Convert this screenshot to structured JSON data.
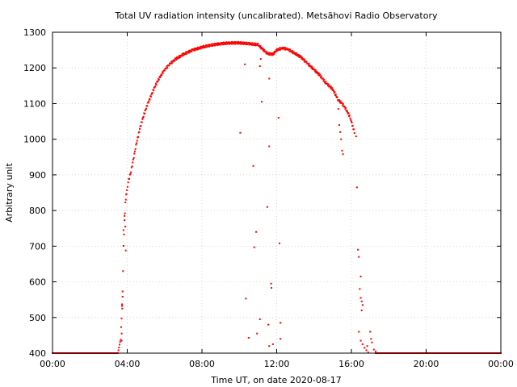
{
  "chart_data": {
    "type": "scatter",
    "title": "Total UV radiation intensity (uncalibrated). Metsähovi Radio Observatory",
    "xlabel": "Time UT, on date 2020-08-17",
    "ylabel": "Arbitrary unit",
    "x_unit": "hours UT",
    "xlim": [
      0,
      24
    ],
    "ylim": [
      400,
      1300
    ],
    "x_ticks": [
      {
        "value": 0,
        "label": "00:00"
      },
      {
        "value": 4,
        "label": "04:00"
      },
      {
        "value": 8,
        "label": "08:00"
      },
      {
        "value": 12,
        "label": "12:00"
      },
      {
        "value": 16,
        "label": "16:00"
      },
      {
        "value": 20,
        "label": "20:00"
      },
      {
        "value": 24,
        "label": "00:00"
      }
    ],
    "y_ticks": [
      400,
      500,
      600,
      700,
      800,
      900,
      1000,
      1100,
      1200,
      1300
    ],
    "grid": true,
    "marker_color": "#ff0000",
    "series": [
      {
        "main_curve": [
          [
            0.0,
            400
          ],
          [
            1.0,
            400
          ],
          [
            2.0,
            400
          ],
          [
            3.0,
            400
          ],
          [
            3.5,
            400
          ],
          [
            3.65,
            440
          ],
          [
            3.7,
            500
          ],
          [
            3.75,
            560
          ],
          [
            3.8,
            700
          ],
          [
            3.85,
            770
          ],
          [
            3.9,
            820
          ],
          [
            3.95,
            845
          ],
          [
            4.05,
            880
          ],
          [
            4.2,
            910
          ],
          [
            4.35,
            950
          ],
          [
            4.5,
            990
          ],
          [
            4.7,
            1035
          ],
          [
            4.9,
            1070
          ],
          [
            5.1,
            1100
          ],
          [
            5.3,
            1125
          ],
          [
            5.5,
            1150
          ],
          [
            5.7,
            1170
          ],
          [
            6.0,
            1195
          ],
          [
            6.3,
            1212
          ],
          [
            6.6,
            1225
          ],
          [
            7.0,
            1238
          ],
          [
            7.5,
            1250
          ],
          [
            8.0,
            1258
          ],
          [
            8.5,
            1264
          ],
          [
            9.0,
            1268
          ],
          [
            9.5,
            1270
          ],
          [
            10.0,
            1270
          ],
          [
            10.5,
            1268
          ],
          [
            11.0,
            1265
          ],
          [
            11.5,
            1240
          ],
          [
            11.8,
            1238
          ],
          [
            12.0,
            1250
          ],
          [
            12.3,
            1256
          ],
          [
            12.6,
            1252
          ],
          [
            13.0,
            1240
          ],
          [
            13.3,
            1230
          ],
          [
            13.6,
            1215
          ],
          [
            14.0,
            1195
          ],
          [
            14.3,
            1180
          ],
          [
            14.6,
            1160
          ],
          [
            15.0,
            1140
          ],
          [
            15.3,
            1110
          ],
          [
            15.5,
            1100
          ],
          [
            15.7,
            1085
          ],
          [
            15.9,
            1065
          ],
          [
            16.0,
            1050
          ],
          [
            16.1,
            1030
          ],
          [
            16.2,
            1015
          ]
        ],
        "scattered_points": [
          [
            3.8,
            745
          ],
          [
            3.85,
            785
          ],
          [
            3.9,
            755
          ],
          [
            3.95,
            845
          ],
          [
            3.92,
            688
          ],
          [
            3.75,
            573
          ],
          [
            3.72,
            537
          ],
          [
            3.73,
            525
          ],
          [
            3.7,
            455
          ],
          [
            3.7,
            435
          ],
          [
            10.05,
            1018
          ],
          [
            10.3,
            1210
          ],
          [
            10.5,
            443
          ],
          [
            10.75,
            925
          ],
          [
            10.8,
            697
          ],
          [
            10.95,
            455
          ],
          [
            10.9,
            740
          ],
          [
            11.1,
            1205
          ],
          [
            11.15,
            1225
          ],
          [
            11.2,
            1105
          ],
          [
            11.1,
            495
          ],
          [
            11.5,
            810
          ],
          [
            11.6,
            980
          ],
          [
            11.6,
            1170
          ],
          [
            11.55,
            480
          ],
          [
            11.6,
            420
          ],
          [
            11.7,
            595
          ],
          [
            11.72,
            583
          ],
          [
            11.8,
            425
          ],
          [
            12.1,
            1060
          ],
          [
            12.15,
            708
          ],
          [
            12.2,
            440
          ],
          [
            12.2,
            485
          ],
          [
            10.35,
            553
          ],
          [
            15.3,
            1085
          ],
          [
            15.35,
            1040
          ],
          [
            15.4,
            1020
          ],
          [
            15.45,
            1000
          ],
          [
            15.5,
            968
          ],
          [
            15.55,
            958
          ],
          [
            16.25,
            1008
          ],
          [
            16.3,
            865
          ],
          [
            16.35,
            690
          ],
          [
            16.4,
            670
          ],
          [
            16.5,
            615
          ],
          [
            16.45,
            580
          ],
          [
            16.5,
            555
          ],
          [
            16.55,
            545
          ],
          [
            16.6,
            535
          ],
          [
            16.55,
            520
          ],
          [
            16.4,
            460
          ],
          [
            16.5,
            435
          ],
          [
            16.6,
            425
          ],
          [
            16.7,
            415
          ],
          [
            16.8,
            408
          ],
          [
            16.9,
            402
          ],
          [
            17.0,
            460
          ],
          [
            17.1,
            430
          ],
          [
            17.2,
            410
          ],
          [
            17.3,
            405
          ],
          [
            16.85,
            420
          ],
          [
            17.05,
            440
          ]
        ]
      }
    ]
  }
}
